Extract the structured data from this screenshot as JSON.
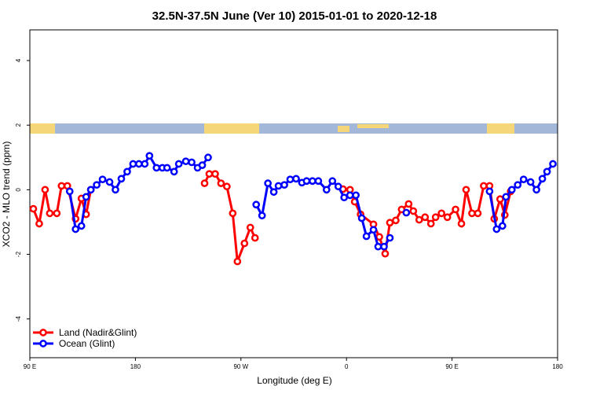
{
  "chart_data": {
    "type": "line",
    "title": "32.5N-37.5N June (Ver 10)   2015-01-01 to 2020-12-18",
    "x_label": "Longitude (deg E)",
    "y_label": "XCO2 - MLO trend (ppm)",
    "xlim": [
      90,
      540
    ],
    "xticks": [
      {
        "value": 90,
        "label": "90 E"
      },
      180,
      {
        "value": 270,
        "label": "90 W"
      },
      {
        "value": 360,
        "label": "0"
      },
      {
        "value": 450,
        "label": "90 E"
      },
      {
        "value": 540,
        "label": "180"
      }
    ],
    "ylim": [
      -5.2,
      4.95
    ],
    "yticks": [
      -4,
      -2,
      0,
      2,
      4
    ],
    "legend": "bottom-left",
    "series": [
      {
        "name": "Land (Nadir&Glint)",
        "color": "#ff0000",
        "x": [
          93,
          98,
          103,
          107,
          113,
          117,
          122,
          129,
          134,
          138,
          142,
          null,
          239,
          243,
          248,
          253,
          258,
          263,
          267,
          273,
          278,
          282,
          null,
          357,
          363,
          367,
          372,
          383,
          388,
          393,
          397,
          402,
          407,
          413,
          417,
          422,
          427,
          432,
          436,
          441,
          446,
          453,
          458,
          462,
          467,
          472,
          477,
          482,
          486,
          491,
          495,
          500
        ],
        "values": [
          -0.59,
          -1.05,
          0,
          -0.73,
          -0.73,
          0.12,
          0.12,
          -0.9,
          -0.27,
          -0.76,
          0,
          null,
          0.2,
          0.49,
          0.49,
          0.2,
          0.1,
          -0.73,
          -2.22,
          -1.66,
          -1.17,
          -1.49,
          null,
          0.02,
          0,
          -0.37,
          -0.76,
          -1.07,
          -1.46,
          -1.98,
          -1.02,
          -0.95,
          -0.61,
          -0.44,
          -0.66,
          -0.93,
          -0.85,
          -1.05,
          -0.85,
          -0.73,
          -0.85,
          -0.61,
          -1.05,
          0,
          -0.73,
          -0.73,
          0.12,
          0.12,
          -0.9,
          -0.29,
          -0.78,
          -0.05
        ]
      },
      {
        "name": "Ocean (Glint)",
        "color": "#0000ff",
        "x": [
          124,
          129,
          134,
          138,
          142,
          147,
          152,
          158,
          163,
          168,
          173,
          178,
          183,
          188,
          192,
          198,
          203,
          207,
          213,
          217,
          223,
          228,
          233,
          237,
          242,
          null,
          283,
          288,
          293,
          298,
          302,
          307,
          312,
          317,
          322,
          326,
          331,
          336,
          343,
          348,
          353,
          358,
          363,
          368,
          373,
          377,
          383,
          387,
          392,
          397,
          null,
          411,
          null,
          482,
          488,
          493,
          496,
          501,
          506,
          511,
          517,
          522,
          527,
          531,
          536
        ],
        "values": [
          -0.05,
          -1.22,
          -1.12,
          -0.22,
          0,
          0.15,
          0.32,
          0.24,
          0,
          0.34,
          0.56,
          0.8,
          0.8,
          0.8,
          1.05,
          0.68,
          0.68,
          0.68,
          0.56,
          0.8,
          0.88,
          0.85,
          0.68,
          0.76,
          1.0,
          null,
          -0.46,
          -0.8,
          0.2,
          -0.07,
          0.12,
          0.15,
          0.32,
          0.34,
          0.22,
          0.27,
          0.27,
          0.27,
          0,
          0.27,
          0.1,
          -0.24,
          -0.17,
          -0.17,
          -0.88,
          -1.44,
          -1.24,
          -1.76,
          -1.76,
          -1.49,
          null,
          -0.71,
          null,
          -0.05,
          -1.22,
          -1.12,
          -0.22,
          0,
          0.15,
          0.32,
          0.24,
          0,
          0.34,
          0.56,
          0.8
        ]
      }
    ]
  }
}
